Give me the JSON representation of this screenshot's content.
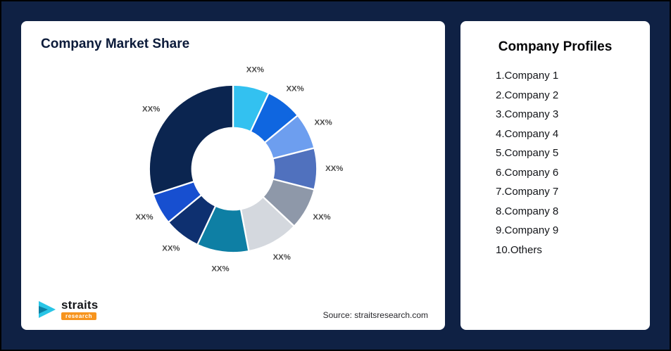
{
  "page": {
    "bg": "#0F2144",
    "card_bg": "#FFFFFF"
  },
  "left_card": {
    "title": "Company Market Share",
    "source": "Source: straitsresearch.com"
  },
  "logo": {
    "brand": "straits",
    "sub": "research",
    "icon_colors": [
      "#29C5E6",
      "#0B7FA3"
    ]
  },
  "right_card": {
    "title": "Company Profiles",
    "items": [
      "1.Company 1",
      "2.Company 2",
      "3.Company 3",
      "4.Company 4",
      "5.Company 5",
      "6.Company 6",
      "7.Company 7",
      "8.Company 8",
      "9.Company 9",
      "10.Others"
    ]
  },
  "chart_data": {
    "type": "pie",
    "variant": "donut",
    "title": "Company Market Share",
    "unit": "percent",
    "inner_radius_ratio": 0.49,
    "legend": false,
    "start_angle_deg": 0,
    "direction": "clockwise",
    "segments": [
      {
        "label": "XX%",
        "value": 7,
        "color": "#33C1F0"
      },
      {
        "label": "XX%",
        "value": 7,
        "color": "#0F66E0"
      },
      {
        "label": "XX%",
        "value": 7,
        "color": "#6D9EEF"
      },
      {
        "label": "XX%",
        "value": 8,
        "color": "#5071BE"
      },
      {
        "label": "XX%",
        "value": 8,
        "color": "#8E98A9"
      },
      {
        "label": "XX%",
        "value": 10,
        "color": "#D4D8DE"
      },
      {
        "label": "XX%",
        "value": 10,
        "color": "#0E7FA4"
      },
      {
        "label": "XX%",
        "value": 7,
        "color": "#0E3070"
      },
      {
        "label": "XX%",
        "value": 6,
        "color": "#174FD0"
      },
      {
        "label": "XX%",
        "value": 30,
        "color": "#0B2550"
      }
    ]
  }
}
